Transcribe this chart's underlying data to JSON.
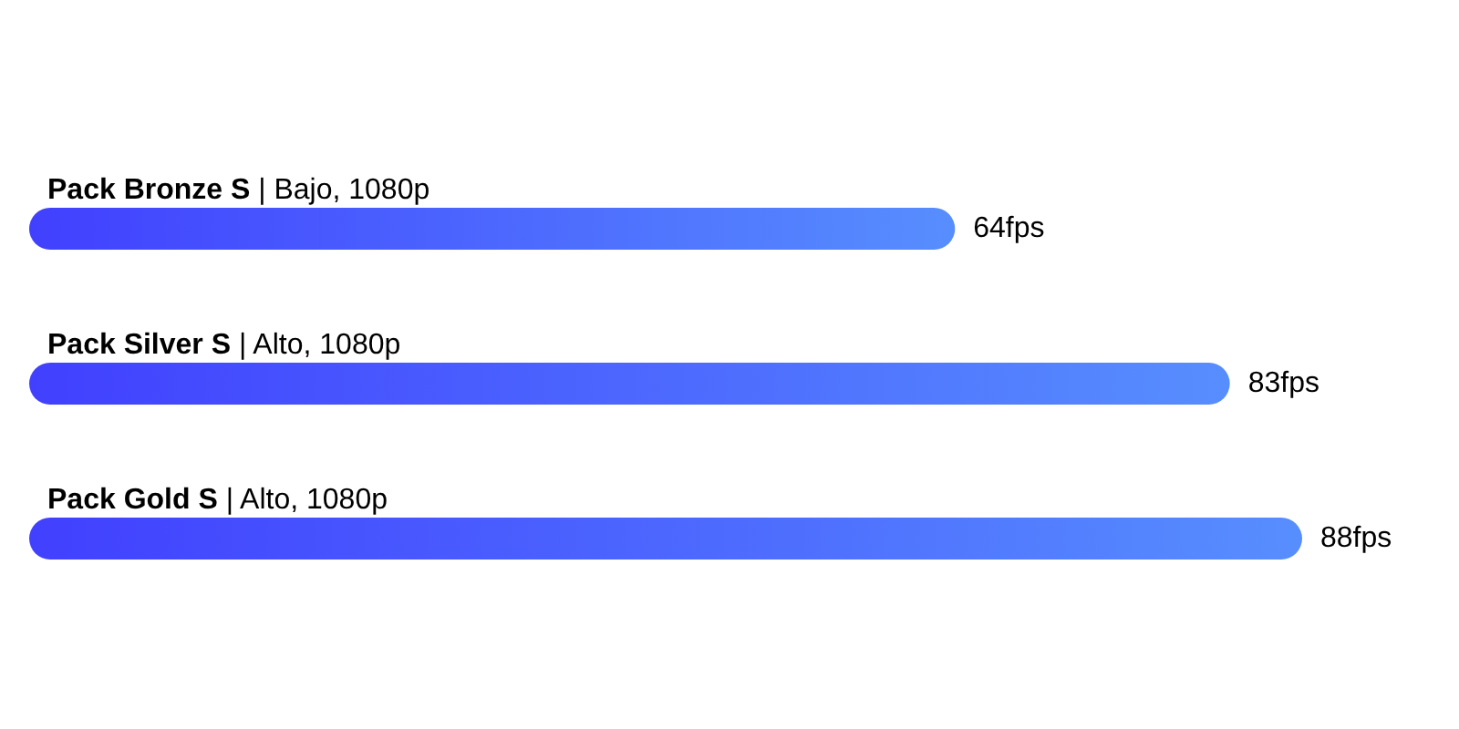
{
  "chart_data": {
    "type": "bar",
    "orientation": "horizontal",
    "categories": [
      "Pack Bronze S | Bajo, 1080p",
      "Pack Silver S | Alto, 1080p",
      "Pack Gold S | Alto, 1080p"
    ],
    "values": [
      64,
      83,
      88
    ],
    "value_labels": [
      "64fps",
      "83fps",
      "88fps"
    ],
    "color": "#4c69fe"
  }
}
